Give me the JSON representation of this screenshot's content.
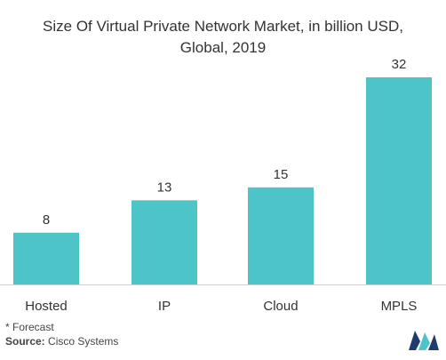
{
  "chart_data": {
    "type": "bar",
    "title": "Size Of Virtual Private Network Market, in billion USD,",
    "subtitle": "Global, 2019",
    "categories": [
      "Hosted",
      "IP",
      "Cloud",
      "MPLS"
    ],
    "values": [
      8,
      13,
      15,
      32
    ],
    "data_labels": [
      "8",
      "13",
      "15",
      "32"
    ],
    "xlabel": "",
    "ylabel": "",
    "ylim": [
      0,
      32
    ],
    "grid": false,
    "legend": "none",
    "bar_color": "#4dc4c8"
  },
  "footnote": "* Forecast",
  "source": {
    "label": "Source:",
    "text": "Cisco Systems"
  },
  "logo": {
    "icon": "mordor-logo-icon",
    "colors": [
      "#1f3c6e",
      "#4dc4c8"
    ]
  }
}
